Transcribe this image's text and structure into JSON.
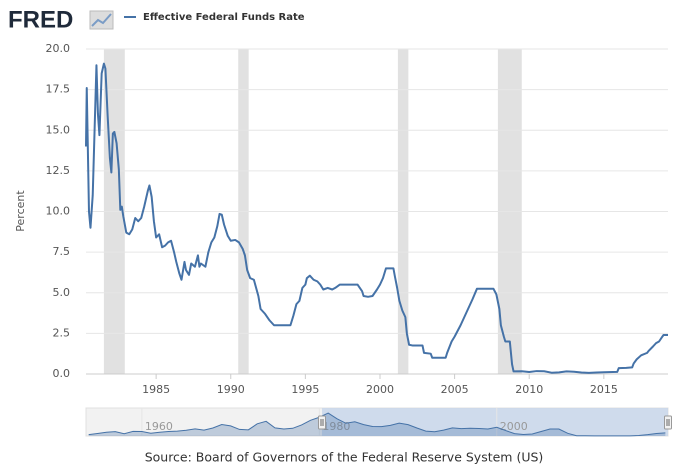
{
  "header": {
    "logo": "FRED"
  },
  "source": "Source: Board of Governors of the Federal Reserve System (US)",
  "chart_data": [
    {
      "type": "line",
      "ylabel": "Percent",
      "xlim": [
        1980.3,
        2019.3
      ],
      "xticks": [
        1985,
        1990,
        1995,
        2000,
        2005,
        2010,
        2015
      ],
      "ylim": [
        0,
        20
      ],
      "yticks": [
        {
          "value": 0,
          "label": "0.0"
        },
        2.5,
        {
          "value": 5,
          "label": "5.0"
        },
        7.5,
        {
          "value": 10,
          "label": "10.0"
        },
        12.5,
        {
          "value": 15,
          "label": "15.0"
        },
        17.5,
        {
          "value": 20,
          "label": "20.0"
        }
      ],
      "grid": true,
      "recessions": [
        [
          1981.5,
          1982.9
        ],
        [
          1990.5,
          1991.2
        ],
        [
          2001.2,
          2001.9
        ],
        [
          2007.9,
          2009.5
        ]
      ],
      "recession_color": "#e1e1e1",
      "x": [
        1980.3,
        1980.35,
        1980.5,
        1980.6,
        1980.75,
        1980.9,
        1981.0,
        1981.1,
        1981.2,
        1981.35,
        1981.5,
        1981.6,
        1981.75,
        1981.9,
        1982.0,
        1982.1,
        1982.2,
        1982.35,
        1982.5,
        1982.6,
        1982.7,
        1982.8,
        1982.9,
        1983.0,
        1983.2,
        1983.4,
        1983.6,
        1983.8,
        1984.0,
        1984.2,
        1984.45,
        1984.55,
        1984.7,
        1984.85,
        1985.0,
        1985.2,
        1985.4,
        1985.6,
        1985.8,
        1986.0,
        1986.2,
        1986.35,
        1986.55,
        1986.7,
        1986.9,
        1987.0,
        1987.2,
        1987.35,
        1987.6,
        1987.8,
        1987.9,
        1988.0,
        1988.3,
        1988.5,
        1988.7,
        1988.9,
        1989.1,
        1989.25,
        1989.4,
        1989.55,
        1989.8,
        1990.0,
        1990.3,
        1990.55,
        1990.8,
        1990.95,
        1991.1,
        1991.3,
        1991.55,
        1991.85,
        1992.0,
        1992.3,
        1992.6,
        1992.9,
        1993.2,
        1993.5,
        1993.8,
        1994.0,
        1994.2,
        1994.4,
        1994.6,
        1994.8,
        1995.0,
        1995.1,
        1995.3,
        1995.55,
        1995.8,
        1996.0,
        1996.2,
        1996.5,
        1996.8,
        1997.0,
        1997.3,
        1997.6,
        1998.0,
        1998.5,
        1998.8,
        1998.9,
        1999.2,
        1999.5,
        1999.8,
        2000.0,
        2000.2,
        2000.4,
        2000.6,
        2000.9,
        2001.0,
        2001.15,
        2001.3,
        2001.5,
        2001.7,
        2001.8,
        2001.95,
        2002.2,
        2002.6,
        2002.85,
        2002.95,
        2003.4,
        2003.5,
        2004.4,
        2004.5,
        2004.8,
        2005.0,
        2005.4,
        2005.8,
        2006.2,
        2006.5,
        2007.6,
        2007.8,
        2008.0,
        2008.1,
        2008.3,
        2008.4,
        2008.7,
        2008.85,
        2008.95,
        2009.5,
        2010.0,
        2010.5,
        2011.0,
        2011.5,
        2012.0,
        2012.5,
        2013.0,
        2013.5,
        2014.0,
        2014.5,
        2015.0,
        2015.9,
        2016.0,
        2016.5,
        2016.9,
        2017.0,
        2017.2,
        2017.5,
        2017.9,
        2018.0,
        2018.3,
        2018.5,
        2018.7,
        2018.9,
        2019.0,
        2019.3
      ],
      "series": [
        {
          "name": "Effective Federal Funds Rate",
          "color": "#4572a7",
          "values": [
            14.0,
            17.6,
            10.0,
            9.0,
            11.0,
            15.8,
            19.0,
            16.0,
            14.7,
            18.5,
            19.1,
            18.8,
            15.9,
            13.3,
            12.4,
            14.8,
            14.9,
            14.2,
            12.6,
            10.1,
            10.3,
            9.7,
            9.2,
            8.7,
            8.6,
            8.9,
            9.6,
            9.4,
            9.6,
            10.3,
            11.3,
            11.6,
            10.9,
            9.4,
            8.4,
            8.6,
            7.8,
            7.9,
            8.1,
            8.2,
            7.5,
            6.9,
            6.2,
            5.8,
            6.9,
            6.4,
            6.1,
            6.8,
            6.6,
            7.3,
            6.6,
            6.8,
            6.6,
            7.5,
            8.1,
            8.4,
            9.1,
            9.85,
            9.8,
            9.2,
            8.5,
            8.2,
            8.25,
            8.1,
            7.7,
            7.3,
            6.4,
            5.9,
            5.8,
            4.8,
            4.0,
            3.7,
            3.3,
            3.0,
            3.0,
            3.0,
            3.0,
            3.0,
            3.6,
            4.3,
            4.5,
            5.3,
            5.5,
            5.9,
            6.05,
            5.8,
            5.7,
            5.5,
            5.2,
            5.3,
            5.2,
            5.3,
            5.5,
            5.5,
            5.5,
            5.5,
            5.1,
            4.8,
            4.75,
            4.8,
            5.2,
            5.5,
            5.9,
            6.5,
            6.5,
            6.5,
            6.0,
            5.3,
            4.5,
            3.9,
            3.5,
            2.5,
            1.8,
            1.75,
            1.75,
            1.75,
            1.3,
            1.25,
            1.0,
            1.0,
            1.3,
            2.0,
            2.3,
            3.0,
            3.8,
            4.6,
            5.25,
            5.25,
            4.9,
            4.0,
            3.0,
            2.3,
            2.0,
            2.0,
            0.6,
            0.16,
            0.17,
            0.12,
            0.18,
            0.17,
            0.08,
            0.1,
            0.16,
            0.14,
            0.09,
            0.07,
            0.09,
            0.11,
            0.13,
            0.36,
            0.38,
            0.41,
            0.65,
            0.9,
            1.15,
            1.3,
            1.42,
            1.7,
            1.9,
            2.0,
            2.27,
            2.4,
            2.4
          ]
        }
      ]
    },
    {
      "type": "area",
      "xlim": [
        1953.7,
        2019.3
      ],
      "xticks": [
        1960,
        1980,
        2000
      ],
      "ylim": [
        0,
        20
      ],
      "color": "#4572a7",
      "x": [
        1954,
        1955,
        1956,
        1957,
        1958,
        1959,
        1960,
        1961,
        1962,
        1963,
        1964,
        1965,
        1966,
        1967,
        1968,
        1969,
        1970,
        1971,
        1972,
        1973,
        1974,
        1975,
        1976,
        1977,
        1978,
        1979,
        1980,
        1981,
        1982,
        1983,
        1984,
        1985,
        1986,
        1987,
        1988,
        1989,
        1990,
        1991,
        1992,
        1993,
        1994,
        1995,
        1996,
        1997,
        1998,
        1999,
        2000,
        2001,
        2002,
        2003,
        2004,
        2005,
        2006,
        2007,
        2008,
        2009,
        2010,
        2011,
        2012,
        2013,
        2014,
        2015,
        2016,
        2017,
        2018,
        2019
      ],
      "values": [
        1.0,
        1.8,
        2.7,
        3.1,
        1.6,
        3.3,
        3.2,
        2.0,
        2.7,
        3.2,
        3.5,
        4.1,
        5.1,
        4.2,
        5.7,
        8.2,
        7.2,
        4.7,
        4.4,
        8.7,
        10.5,
        5.8,
        5.0,
        5.5,
        7.9,
        11.2,
        13.4,
        16.4,
        12.3,
        9.1,
        10.2,
        8.1,
        6.8,
        6.7,
        7.6,
        9.2,
        8.1,
        5.7,
        3.5,
        3.0,
        4.2,
        5.8,
        5.3,
        5.5,
        5.4,
        5.0,
        6.2,
        3.9,
        1.7,
        1.1,
        1.4,
        3.2,
        5.0,
        5.0,
        1.9,
        0.2,
        0.2,
        0.1,
        0.1,
        0.1,
        0.1,
        0.1,
        0.4,
        1.0,
        1.8,
        2.2
      ]
    }
  ]
}
